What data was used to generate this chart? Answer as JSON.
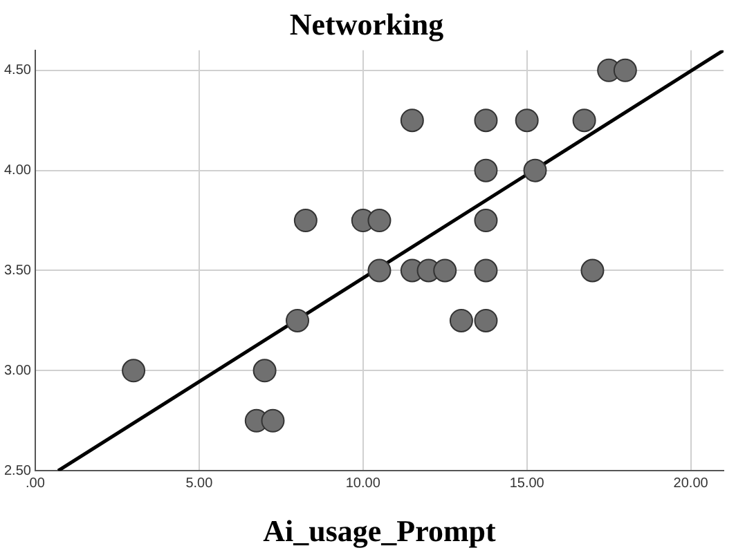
{
  "chart_data": {
    "type": "scatter",
    "title": "Networking",
    "xlabel": "Ai_usage_Prompt",
    "xlim": [
      0,
      21
    ],
    "ylim": [
      2.5,
      4.6
    ],
    "xticks": [
      {
        "value": 0,
        "label": ".00"
      },
      {
        "value": 5,
        "label": "5.00"
      },
      {
        "value": 10,
        "label": "10.00"
      },
      {
        "value": 15,
        "label": "15.00"
      },
      {
        "value": 20,
        "label": "20.00"
      }
    ],
    "yticks": [
      {
        "value": 2.5,
        "label": "2.50"
      },
      {
        "value": 3,
        "label": "3.00"
      },
      {
        "value": 3.5,
        "label": "3.50"
      },
      {
        "value": 4,
        "label": "4.00"
      },
      {
        "value": 4.5,
        "label": "4.50"
      }
    ],
    "grid": true,
    "series": [
      {
        "marker": "circle",
        "color": "#707070",
        "x": [
          3,
          6.75,
          7.25,
          7,
          8,
          8.25,
          10,
          10.5,
          10.5,
          11.5,
          12,
          12.5,
          11.5,
          13,
          13.75,
          13.75,
          13.75,
          13.75,
          13.75,
          15,
          15.25,
          16.75,
          17,
          17.5,
          18
        ],
        "values": [
          3.0,
          2.75,
          2.75,
          3.0,
          3.25,
          3.75,
          3.75,
          3.75,
          3.5,
          3.5,
          3.5,
          3.5,
          4.25,
          3.25,
          3.25,
          3.5,
          3.75,
          4.0,
          4.25,
          4.25,
          4.0,
          4.25,
          3.5,
          4.5,
          4.5
        ]
      },
      {
        "type": "line",
        "marker": "none",
        "color": "#000000",
        "x": [
          0.7,
          21
        ],
        "values": [
          2.5,
          4.6
        ]
      }
    ]
  }
}
